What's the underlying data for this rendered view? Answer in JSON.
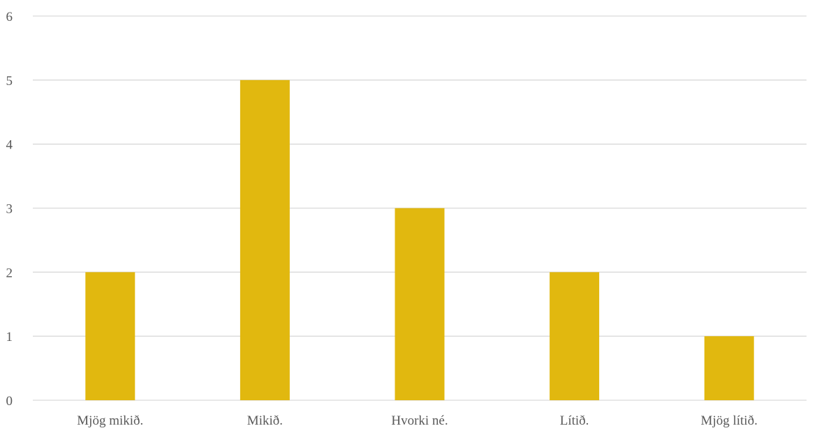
{
  "chart_data": {
    "type": "bar",
    "title": "",
    "xlabel": "",
    "ylabel": "",
    "categories": [
      "Mjög mikið.",
      "Mikið.",
      "Hvorki né.",
      "Lítið.",
      "Mjög lítið."
    ],
    "values": [
      2,
      5,
      3,
      2,
      1
    ],
    "ylim": [
      0,
      6
    ],
    "yticks": [
      0,
      1,
      2,
      3,
      4,
      5,
      6
    ],
    "grid": true,
    "legend": "none",
    "bar_color": "#e1b80f",
    "grid_color": "#d9d9d9",
    "text_color": "#595959"
  }
}
